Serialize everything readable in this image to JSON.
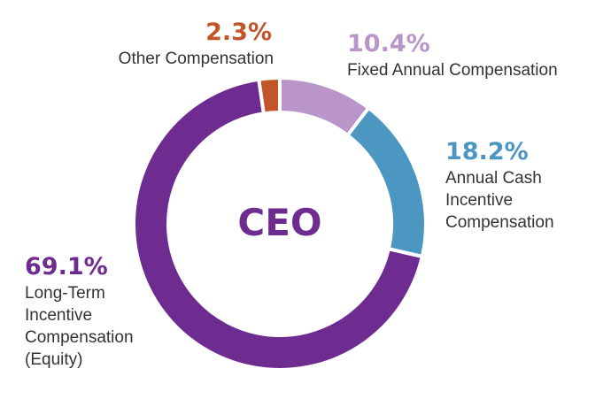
{
  "chart_data": {
    "type": "pie",
    "center_label": "CEO",
    "slices": [
      {
        "key": "fixed",
        "label": "Fixed Annual Compensation",
        "label_lines": [
          "Fixed Annual Compensation"
        ],
        "percent_text": "10.4%",
        "value": 10.4,
        "color": "#b995c9"
      },
      {
        "key": "cash",
        "label": "Annual Cash Incentive Compensation",
        "label_lines": [
          "Annual Cash",
          "Incentive",
          "Compensation"
        ],
        "percent_text": "18.2%",
        "value": 18.2,
        "color": "#4b97c2"
      },
      {
        "key": "ltic",
        "label": "Long-Term Incentive Compensation (Equity)",
        "label_lines": [
          "Long-Term",
          "Incentive",
          "Compensation",
          "(Equity)"
        ],
        "percent_text": "69.1%",
        "value": 69.1,
        "color": "#6e2c91"
      },
      {
        "key": "other",
        "label": "Other Compensation",
        "label_lines": [
          "Other Compensation"
        ],
        "percent_text": "2.3%",
        "value": 2.3,
        "color": "#c0562a"
      }
    ],
    "start_angle_deg": 0,
    "direction": "clockwise"
  }
}
